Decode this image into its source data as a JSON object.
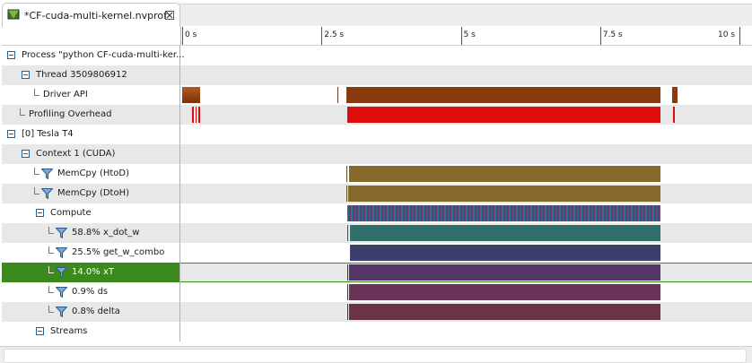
{
  "tab": {
    "title": "*CF-cuda-multi-kernel.nvprof",
    "icon": "profiler-file-icon",
    "close_icon": "close-icon"
  },
  "ruler": {
    "ticks": [
      {
        "label": "0 s",
        "seconds": 0
      },
      {
        "label": "2.5 s",
        "seconds": 2.5
      },
      {
        "label": "5 s",
        "seconds": 5
      },
      {
        "label": "7.5 s",
        "seconds": 7.5
      },
      {
        "label": "10 s",
        "seconds": 10
      }
    ]
  },
  "rows": [
    {
      "label": "Process \"python CF-cuda-multi-ker...",
      "indent": 0,
      "type": "expander"
    },
    {
      "label": "Thread 3509806912",
      "indent": 1,
      "type": "expander"
    },
    {
      "label": "Driver API",
      "indent": 2,
      "type": "leaf"
    },
    {
      "label": "Profiling Overhead",
      "indent": 1,
      "type": "leaf"
    },
    {
      "label": "[0] Tesla T4",
      "indent": 0,
      "type": "expander"
    },
    {
      "label": "Context 1 (CUDA)",
      "indent": 1,
      "type": "expander"
    },
    {
      "label": "MemCpy (HtoD)",
      "indent": 2,
      "type": "filter"
    },
    {
      "label": "MemCpy (DtoH)",
      "indent": 2,
      "type": "filter"
    },
    {
      "label": "Compute",
      "indent": 2,
      "type": "expander"
    },
    {
      "label": "58.8% x_dot_w",
      "indent": 3,
      "type": "filter"
    },
    {
      "label": "25.5% get_w_combo",
      "indent": 3,
      "type": "filter"
    },
    {
      "label": "14.0% xT",
      "indent": 3,
      "type": "filter",
      "selected": true
    },
    {
      "label": "0.9% ds",
      "indent": 3,
      "type": "filter"
    },
    {
      "label": "0.8% delta",
      "indent": 3,
      "type": "filter"
    },
    {
      "label": "Streams",
      "indent": 2,
      "type": "expander"
    }
  ],
  "colors": {
    "driver_api": "#8a3a0c",
    "overhead": "#dd0d0d",
    "memcpy": "#85692a",
    "compute_stripes": [
      "#3a5f8a",
      "#6a3a6a",
      "#2e7a6e",
      "#5a3a8a"
    ],
    "x_dot_w": "#32706c",
    "get_w_combo": "#3b3f6c",
    "xT": "#533568",
    "ds": "#6a3459",
    "delta": "#6a3348",
    "selection": "#3c8a1d"
  }
}
